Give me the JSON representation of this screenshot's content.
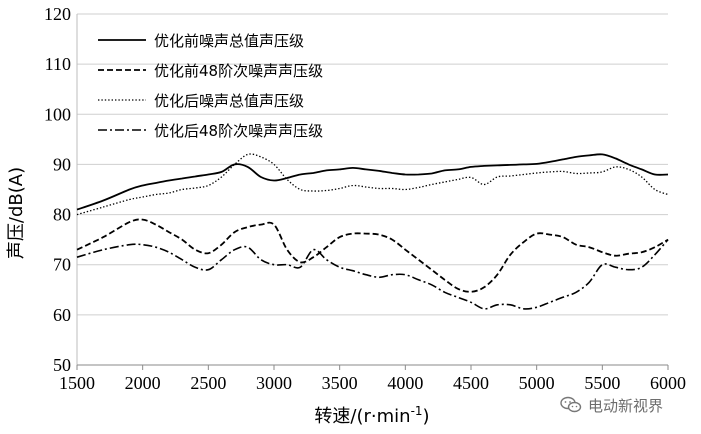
{
  "chart_data": {
    "type": "line",
    "xlabel": "转速/(r·min-1)",
    "ylabel": "声压/dB(A)",
    "xlim": [
      1500,
      6000
    ],
    "ylim": [
      50,
      120
    ],
    "xticks": [
      1500,
      2000,
      2500,
      3000,
      3500,
      4000,
      4500,
      5000,
      5500,
      6000
    ],
    "yticks": [
      50,
      60,
      70,
      80,
      90,
      100,
      110,
      120
    ],
    "grid": "horizontal",
    "legend_position": "top-left",
    "series": [
      {
        "name": "优化前噪声总值声压级",
        "style": "solid",
        "x": [
          1500,
          1700,
          1900,
          2000,
          2100,
          2200,
          2300,
          2400,
          2500,
          2600,
          2700,
          2800,
          2900,
          3000,
          3100,
          3200,
          3300,
          3400,
          3500,
          3600,
          3700,
          3800,
          3900,
          4000,
          4100,
          4200,
          4300,
          4400,
          4500,
          4600,
          4700,
          4800,
          4900,
          5000,
          5100,
          5200,
          5300,
          5400,
          5500,
          5600,
          5700,
          5800,
          5900,
          6000
        ],
        "y": [
          81,
          82.8,
          85,
          85.8,
          86.3,
          86.8,
          87.2,
          87.6,
          88,
          88.5,
          90,
          89.5,
          87.5,
          86.8,
          87.3,
          88,
          88.3,
          88.8,
          89,
          89.3,
          89,
          88.7,
          88.3,
          88,
          88,
          88.2,
          88.8,
          89,
          89.5,
          89.7,
          89.8,
          89.9,
          90,
          90.1,
          90.5,
          91,
          91.5,
          91.8,
          92,
          91.2,
          90,
          89,
          88,
          88
        ]
      },
      {
        "name": "优化前48阶次噪声声压级",
        "style": "dashed",
        "x": [
          1500,
          1700,
          1900,
          2000,
          2100,
          2200,
          2300,
          2400,
          2500,
          2600,
          2700,
          2800,
          2900,
          3000,
          3100,
          3200,
          3300,
          3400,
          3500,
          3600,
          3700,
          3800,
          3900,
          4000,
          4100,
          4200,
          4300,
          4400,
          4500,
          4600,
          4700,
          4800,
          4900,
          5000,
          5100,
          5200,
          5300,
          5400,
          5500,
          5600,
          5700,
          5800,
          5900,
          6000
        ],
        "y": [
          73,
          75.5,
          78.5,
          79,
          78,
          76.5,
          75,
          73,
          72.3,
          74,
          76.5,
          77.5,
          78,
          78,
          73,
          70.5,
          71.5,
          73.5,
          75.5,
          76.2,
          76.2,
          76,
          75,
          73,
          71,
          69,
          67,
          65.2,
          64.6,
          65.5,
          68,
          72,
          74.5,
          76.2,
          76,
          75.5,
          74,
          73.5,
          72.5,
          71.8,
          72.2,
          72.5,
          73.5,
          75
        ]
      },
      {
        "name": "优化后噪声总值声压级",
        "style": "dotted",
        "x": [
          1500,
          1700,
          1900,
          2000,
          2100,
          2200,
          2300,
          2400,
          2500,
          2600,
          2700,
          2800,
          2900,
          3000,
          3100,
          3200,
          3300,
          3400,
          3500,
          3600,
          3700,
          3800,
          3900,
          4000,
          4100,
          4200,
          4300,
          4400,
          4500,
          4600,
          4700,
          4800,
          4900,
          5000,
          5100,
          5200,
          5300,
          5400,
          5500,
          5600,
          5700,
          5800,
          5900,
          6000
        ],
        "y": [
          80,
          81.5,
          83,
          83.5,
          84,
          84.3,
          85,
          85.3,
          85.8,
          87.5,
          90,
          92,
          91.5,
          90,
          87,
          85,
          84.7,
          84.8,
          85.2,
          85.8,
          85.5,
          85.2,
          85.2,
          85,
          85.4,
          86,
          86.5,
          87,
          87.4,
          86,
          87.5,
          87.7,
          88,
          88.3,
          88.5,
          88.6,
          88.2,
          88.3,
          88.5,
          89.5,
          89,
          87.5,
          85,
          84
        ]
      },
      {
        "name": "优化后48阶次噪声声压级",
        "style": "dashdot",
        "x": [
          1500,
          1700,
          1900,
          2000,
          2100,
          2200,
          2300,
          2400,
          2500,
          2600,
          2700,
          2800,
          2900,
          3000,
          3100,
          3200,
          3300,
          3400,
          3500,
          3600,
          3700,
          3800,
          3900,
          4000,
          4100,
          4200,
          4300,
          4400,
          4500,
          4600,
          4700,
          4800,
          4900,
          5000,
          5100,
          5200,
          5300,
          5400,
          5500,
          5600,
          5700,
          5800,
          5900,
          6000
        ],
        "y": [
          71.5,
          73,
          74,
          74,
          73.5,
          72.5,
          71,
          69.5,
          69,
          71,
          73,
          73.5,
          71,
          70,
          70,
          69.5,
          73,
          71,
          69.5,
          68.8,
          68,
          67.5,
          68,
          68,
          67,
          66,
          64.5,
          63.5,
          62.5,
          61.2,
          62,
          62,
          61.2,
          61.5,
          62.5,
          63.5,
          64.5,
          66.5,
          70,
          69.5,
          69,
          69.5,
          72,
          75
        ]
      }
    ]
  },
  "watermark": {
    "text": "电动新视界",
    "icon": "wechat-icon"
  }
}
